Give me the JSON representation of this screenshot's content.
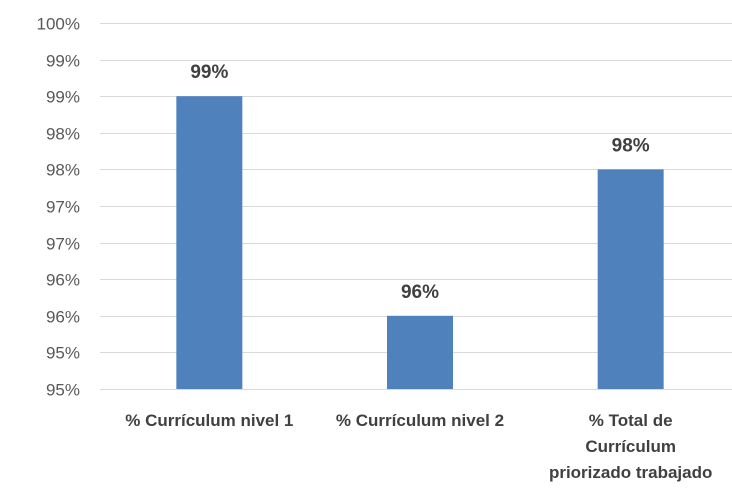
{
  "chart_data": {
    "type": "bar",
    "categories": [
      [
        "% Currículum nivel 1"
      ],
      [
        "% Currículum nivel 2"
      ],
      [
        "% Total de",
        "Currículum",
        "priorizado trabajado"
      ]
    ],
    "values": [
      99.0,
      96.0,
      98.0
    ],
    "data_labels": [
      "99%",
      "96%",
      "98%"
    ],
    "ylim": [
      95.0,
      100.0
    ],
    "y_ticks": [
      {
        "value": 95.0,
        "label": "95%"
      },
      {
        "value": 95.5,
        "label": "95%"
      },
      {
        "value": 96.0,
        "label": "96%"
      },
      {
        "value": 96.5,
        "label": "96%"
      },
      {
        "value": 97.0,
        "label": "97%"
      },
      {
        "value": 97.5,
        "label": "97%"
      },
      {
        "value": 98.0,
        "label": "98%"
      },
      {
        "value": 98.5,
        "label": "98%"
      },
      {
        "value": 99.0,
        "label": "99%"
      },
      {
        "value": 99.5,
        "label": "99%"
      },
      {
        "value": 100.0,
        "label": "100%"
      }
    ],
    "grid": true,
    "legend": "none",
    "bar_color": "#4F81BD",
    "title": "",
    "xlabel": "",
    "ylabel": ""
  }
}
